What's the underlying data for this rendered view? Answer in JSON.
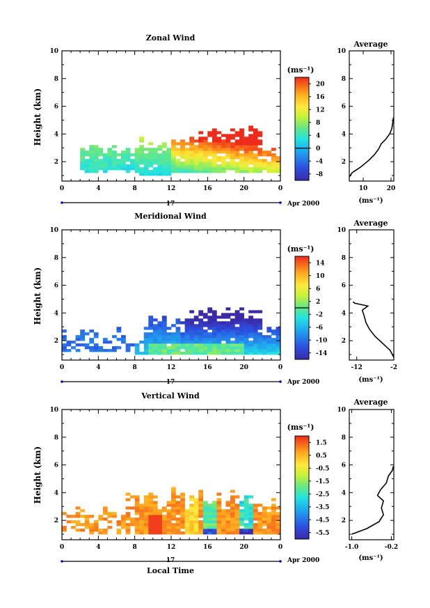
{
  "chart_data": [
    {
      "type": "heatmap",
      "title": "Zonal Wind",
      "ylabel": "Height (km)",
      "x_ticks": [
        "0",
        "4",
        "8",
        "12",
        "16",
        "20",
        "0"
      ],
      "y_ticks": [
        "2",
        "4",
        "6",
        "8",
        "10"
      ],
      "xlim": [
        0,
        24
      ],
      "ylim": [
        0.6,
        10
      ],
      "date_day": "17",
      "date_month": "Apr 2000",
      "colorbar": {
        "unit": "(ms⁻¹)",
        "ticks": [
          "20",
          "16",
          "12",
          "8",
          "4",
          "0",
          "-4",
          "-8"
        ],
        "min": -10,
        "max": 22,
        "contour": 0
      },
      "profile": {
        "title": "Average",
        "unit": "(ms⁻¹)",
        "x_ticks": [
          "10",
          "20"
        ],
        "xlim": [
          5,
          21
        ],
        "points": [
          [
            5,
            0.9
          ],
          [
            6,
            1.2
          ],
          [
            9,
            1.6
          ],
          [
            12,
            2.1
          ],
          [
            14,
            2.5
          ],
          [
            15.5,
            2.9
          ],
          [
            16.5,
            3.3
          ],
          [
            18,
            3.6
          ],
          [
            19.5,
            4.0
          ],
          [
            20.3,
            4.4
          ],
          [
            20.6,
            4.8
          ],
          [
            20.9,
            5.2
          ]
        ]
      },
      "field": "zonal"
    },
    {
      "type": "heatmap",
      "title": "Meridional Wind",
      "ylabel": "Height (km)",
      "x_ticks": [
        "0",
        "4",
        "8",
        "12",
        "16",
        "20",
        "0"
      ],
      "y_ticks": [
        "2",
        "4",
        "6",
        "8",
        "10"
      ],
      "xlim": [
        0,
        24
      ],
      "ylim": [
        0.6,
        10
      ],
      "date_day": "17",
      "date_month": "Apr 2000",
      "colorbar": {
        "unit": "(ms⁻¹)",
        "ticks": [
          "14",
          "10",
          "6",
          "2",
          "-2",
          "-6",
          "-10",
          "-14"
        ],
        "min": -16,
        "max": 16,
        "contour": 0
      },
      "profile": {
        "title": "Average",
        "unit": "(ms⁻¹)",
        "x_ticks": [
          "-12",
          "-2"
        ],
        "xlim": [
          -14,
          -2
        ],
        "points": [
          [
            -2,
            0.8
          ],
          [
            -3,
            1.3
          ],
          [
            -5,
            1.8
          ],
          [
            -7,
            2.3
          ],
          [
            -8.5,
            2.8
          ],
          [
            -9.5,
            3.3
          ],
          [
            -10,
            3.8
          ],
          [
            -10.5,
            4.2
          ],
          [
            -9,
            4.5
          ],
          [
            -12.5,
            4.7
          ],
          [
            -13,
            4.8
          ]
        ]
      },
      "field": "meridional"
    },
    {
      "type": "heatmap",
      "title": "Vertical Wind",
      "ylabel": "Height (km)",
      "xlabel": "Local Time",
      "x_ticks": [
        "0",
        "4",
        "8",
        "12",
        "16",
        "20",
        "0"
      ],
      "y_ticks": [
        "2",
        "4",
        "6",
        "8",
        "10"
      ],
      "xlim": [
        0,
        24
      ],
      "ylim": [
        0.6,
        10
      ],
      "date_day": "17",
      "date_month": "Apr 2000",
      "colorbar": {
        "unit": "(ms⁻¹)",
        "ticks": [
          "1.5",
          "0.5",
          "-0.5",
          "-1.5",
          "-2.5",
          "-3.5",
          "-4.5",
          "-5.5"
        ],
        "min": -6,
        "max": 2,
        "contour": null
      },
      "profile": {
        "title": "Average",
        "unit": "(ms⁻¹)",
        "x_ticks": [
          "-1.0",
          "-0.2"
        ],
        "xlim": [
          -1.05,
          -0.15
        ],
        "points": [
          [
            -1.0,
            1.0
          ],
          [
            -0.7,
            1.4
          ],
          [
            -0.45,
            1.9
          ],
          [
            -0.36,
            2.4
          ],
          [
            -0.4,
            2.9
          ],
          [
            -0.36,
            3.4
          ],
          [
            -0.48,
            3.8
          ],
          [
            -0.42,
            4.2
          ],
          [
            -0.3,
            4.7
          ],
          [
            -0.26,
            5.2
          ],
          [
            -0.18,
            5.6
          ],
          [
            -0.16,
            5.9
          ]
        ]
      },
      "field": "vertical"
    }
  ]
}
